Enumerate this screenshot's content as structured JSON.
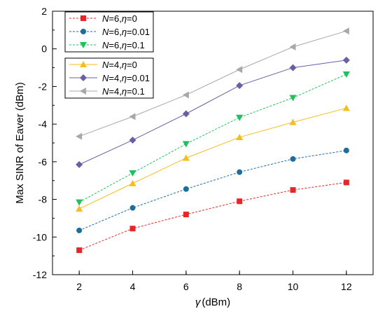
{
  "chart_data": {
    "type": "line",
    "title": "",
    "xlabel_symbol": "γ",
    "xlabel_unit": "(dBm)",
    "ylabel": "Max SINR of Eaver (dBm)",
    "xlim": [
      1,
      13
    ],
    "ylim": [
      -12,
      2
    ],
    "x_ticks": [
      2,
      4,
      6,
      8,
      10,
      12
    ],
    "y_ticks": [
      -12,
      -10,
      -8,
      -6,
      -4,
      -2,
      0,
      2
    ],
    "x_tick_labels": [
      "2",
      "4",
      "6",
      "8",
      "10",
      "12"
    ],
    "y_tick_labels": [
      "-12",
      "-10",
      "-8",
      "-6",
      "-4",
      "-2",
      "0",
      "2"
    ],
    "grid": false,
    "legend_placement": "top-left",
    "x": [
      2,
      4,
      6,
      8,
      10,
      12
    ],
    "series": [
      {
        "legend_N": "6",
        "legend_eta": "0",
        "color": "#e8242a",
        "marker": "square",
        "dashed": true,
        "values": [
          -10.7,
          -9.55,
          -8.8,
          -8.1,
          -7.5,
          -7.1
        ]
      },
      {
        "legend_N": "6",
        "legend_eta": "0.01",
        "color": "#1f6e99",
        "marker": "circle",
        "dashed": true,
        "values": [
          -9.65,
          -8.45,
          -7.45,
          -6.55,
          -5.85,
          -5.4
        ]
      },
      {
        "legend_N": "6",
        "legend_eta": "0.1",
        "color": "#1ec15c",
        "marker": "triangle-down",
        "dashed": true,
        "values": [
          -8.15,
          -6.6,
          -5.05,
          -3.65,
          -2.6,
          -1.35
        ]
      },
      {
        "legend_N": "4",
        "legend_eta": "0",
        "color": "#f5be1e",
        "marker": "triangle-up",
        "dashed": false,
        "values": [
          -8.5,
          -7.15,
          -5.8,
          -4.7,
          -3.9,
          -3.15
        ]
      },
      {
        "legend_N": "4",
        "legend_eta": "0.01",
        "color": "#6a5fa4",
        "marker": "diamond",
        "dashed": false,
        "values": [
          -6.15,
          -4.85,
          -3.45,
          -1.95,
          -1.0,
          -0.6
        ]
      },
      {
        "legend_N": "4",
        "legend_eta": "0.1",
        "color": "#a8a8a8",
        "marker": "triangle-left",
        "dashed": false,
        "values": [
          -4.65,
          -3.6,
          -2.45,
          -1.1,
          0.1,
          0.95
        ]
      }
    ],
    "legend_N_symbol": "N",
    "legend_eta_symbol": "η",
    "legend_eq_N": "=",
    "legend_sep": ",",
    "legend_eq_eta": "="
  }
}
